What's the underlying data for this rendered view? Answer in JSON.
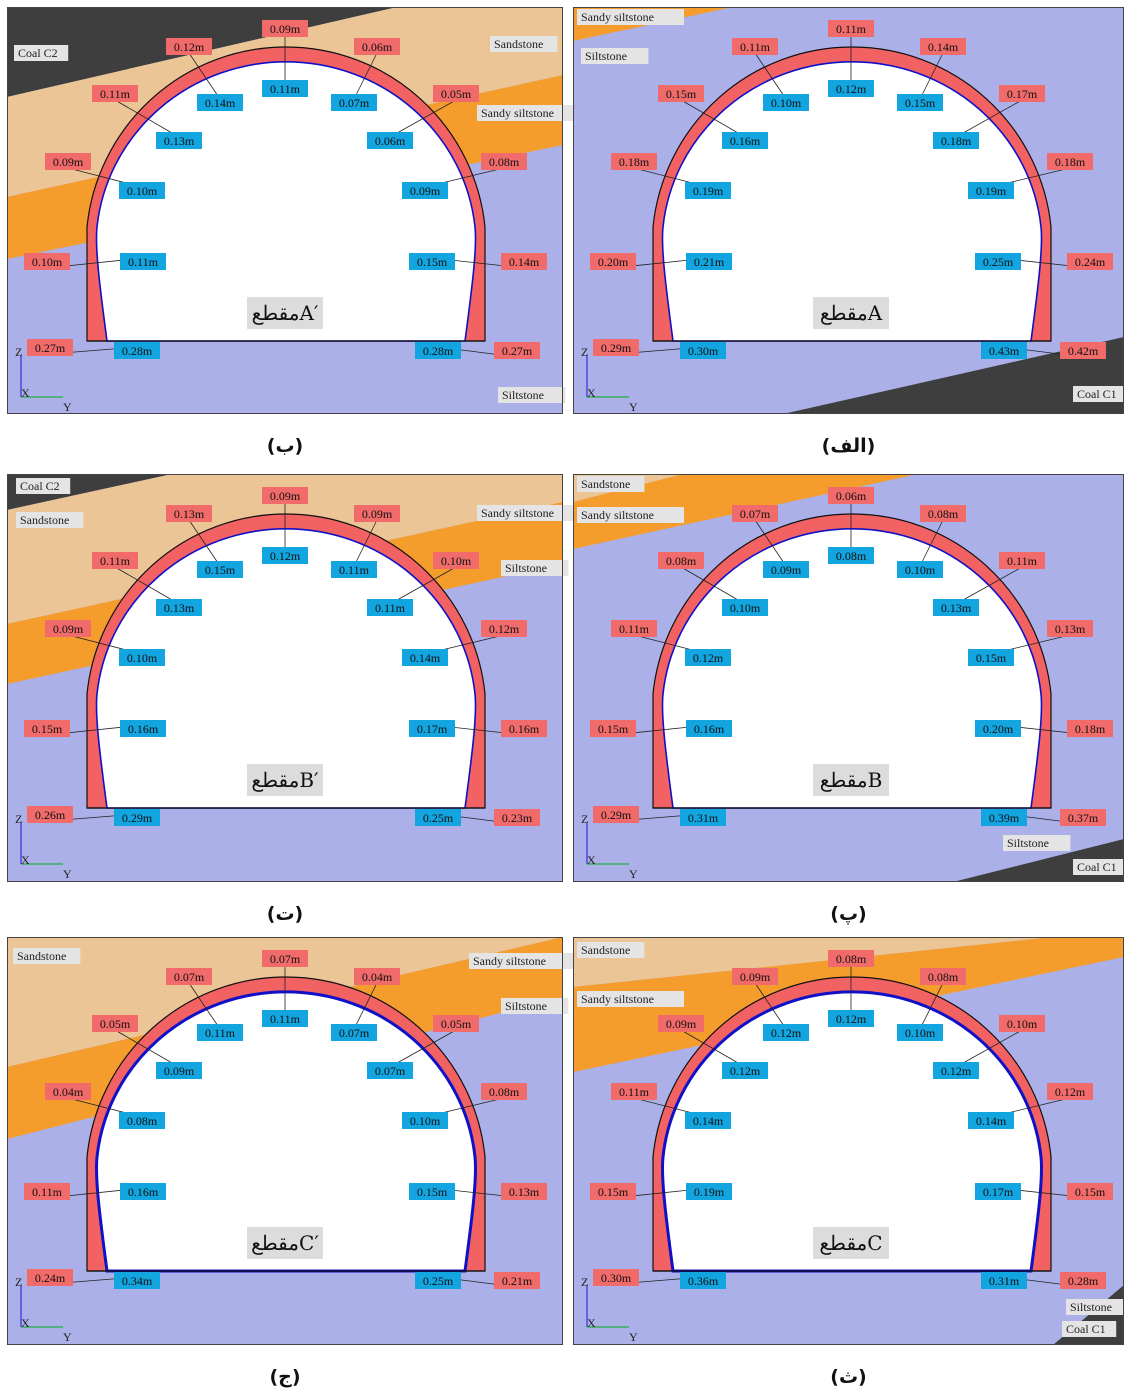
{
  "colors": {
    "siltstone": "#abb0e8",
    "sandstone": "#ebc595",
    "sandy_siltstone": "#f49c2c",
    "coal": "#3e3e3e",
    "lining": "#f26262",
    "inner_line": "#1010c8",
    "label_red": "#f26b6b",
    "label_blue": "#12a5e0"
  },
  "panels": [
    {
      "id": "b",
      "caption": "(ب)",
      "section": "مقطعA′",
      "layers": [
        "Coal C2",
        "Sandstone",
        "Sandy siltstone",
        "Siltstone"
      ],
      "outer": [
        "0.09m",
        "0.12m",
        "0.06m",
        "0.11m",
        "0.05m",
        "0.09m",
        "0.08m",
        "0.10m",
        "0.14m",
        "0.27m",
        "0.27m"
      ],
      "inner": [
        "0.11m",
        "0.14m",
        "0.07m",
        "0.13m",
        "0.06m",
        "0.10m",
        "0.09m",
        "0.11m",
        "0.15m",
        "0.28m",
        "0.28m"
      ]
    },
    {
      "id": "alef",
      "caption": "(الف)",
      "section": "مقطعA",
      "layers": [
        "Sandy siltstone",
        "Siltstone",
        "Coal C1"
      ],
      "outer": [
        "0.11m",
        "0.11m",
        "0.14m",
        "0.15m",
        "0.17m",
        "0.18m",
        "0.18m",
        "0.20m",
        "0.24m",
        "0.29m",
        "0.42m"
      ],
      "inner": [
        "0.12m",
        "0.10m",
        "0.15m",
        "0.16m",
        "0.18m",
        "0.19m",
        "0.19m",
        "0.21m",
        "0.25m",
        "0.30m",
        "0.43m"
      ]
    },
    {
      "id": "t",
      "caption": "(ت)",
      "section": "مقطعB′",
      "layers": [
        "Coal C2",
        "Sandstone",
        "Sandy siltstone",
        "Siltstone"
      ],
      "outer": [
        "0.09m",
        "0.13m",
        "0.09m",
        "0.11m",
        "0.10m",
        "0.09m",
        "0.12m",
        "0.15m",
        "0.16m",
        "0.26m",
        "0.23m"
      ],
      "inner": [
        "0.12m",
        "0.15m",
        "0.11m",
        "0.13m",
        "0.11m",
        "0.10m",
        "0.14m",
        "0.16m",
        "0.17m",
        "0.29m",
        "0.25m"
      ]
    },
    {
      "id": "p",
      "caption": "(پ)",
      "section": "مقطعB",
      "layers": [
        "Sandstone",
        "Sandy siltstone",
        "Siltstone",
        "Coal C1"
      ],
      "outer": [
        "0.06m",
        "0.07m",
        "0.08m",
        "0.08m",
        "0.11m",
        "0.11m",
        "0.13m",
        "0.15m",
        "0.18m",
        "0.29m",
        "0.37m"
      ],
      "inner": [
        "0.08m",
        "0.09m",
        "0.10m",
        "0.10m",
        "0.13m",
        "0.12m",
        "0.15m",
        "0.16m",
        "0.20m",
        "0.31m",
        "0.39m"
      ]
    },
    {
      "id": "j",
      "caption": "(ج)",
      "section": "مقطعC′",
      "layers": [
        "Sandstone",
        "Sandy siltstone",
        "Siltstone"
      ],
      "outer": [
        "0.07m",
        "0.07m",
        "0.04m",
        "0.05m",
        "0.05m",
        "0.04m",
        "0.08m",
        "0.11m",
        "0.13m",
        "0.24m",
        "0.21m"
      ],
      "inner": [
        "0.11m",
        "0.11m",
        "0.07m",
        "0.09m",
        "0.07m",
        "0.08m",
        "0.10m",
        "0.16m",
        "0.15m",
        "0.34m",
        "0.25m"
      ]
    },
    {
      "id": "th",
      "caption": "(ث)",
      "section": "مقطعC",
      "layers": [
        "Sandstone",
        "Sandy siltstone",
        "Siltstone",
        "Coal C1"
      ],
      "outer": [
        "0.08m",
        "0.09m",
        "0.08m",
        "0.09m",
        "0.10m",
        "0.11m",
        "0.12m",
        "0.15m",
        "0.15m",
        "0.30m",
        "0.28m"
      ],
      "inner": [
        "0.12m",
        "0.12m",
        "0.10m",
        "0.12m",
        "0.12m",
        "0.14m",
        "0.14m",
        "0.19m",
        "0.17m",
        "0.36m",
        "0.31m"
      ]
    }
  ],
  "axes": {
    "z": "Z",
    "x": "X",
    "y": "Y"
  }
}
